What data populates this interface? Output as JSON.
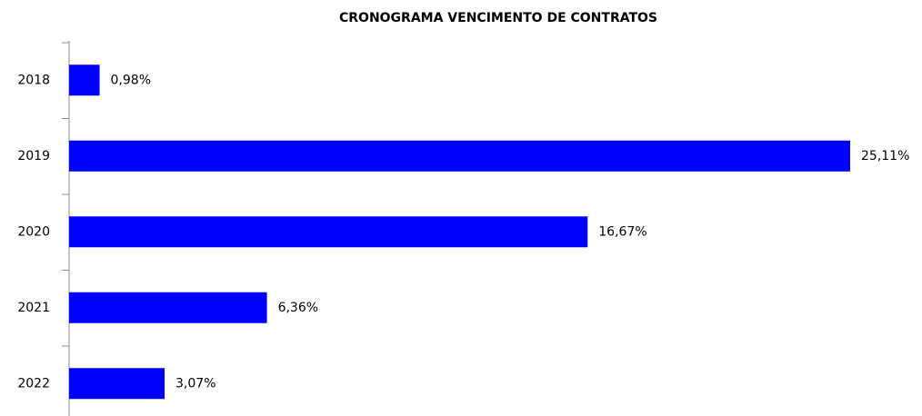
{
  "chart_data": {
    "type": "barh",
    "title": "CRONOGRAMA VENCIMENTO DE CONTRATOS",
    "categories": [
      "2018",
      "2019",
      "2020",
      "2021",
      "2022"
    ],
    "values": [
      0.98,
      25.11,
      16.67,
      6.36,
      3.07
    ],
    "value_labels": [
      "0,98%",
      "25,11%",
      "16,67%",
      "6,36%",
      "3,07%"
    ],
    "color": "#0000ff"
  }
}
